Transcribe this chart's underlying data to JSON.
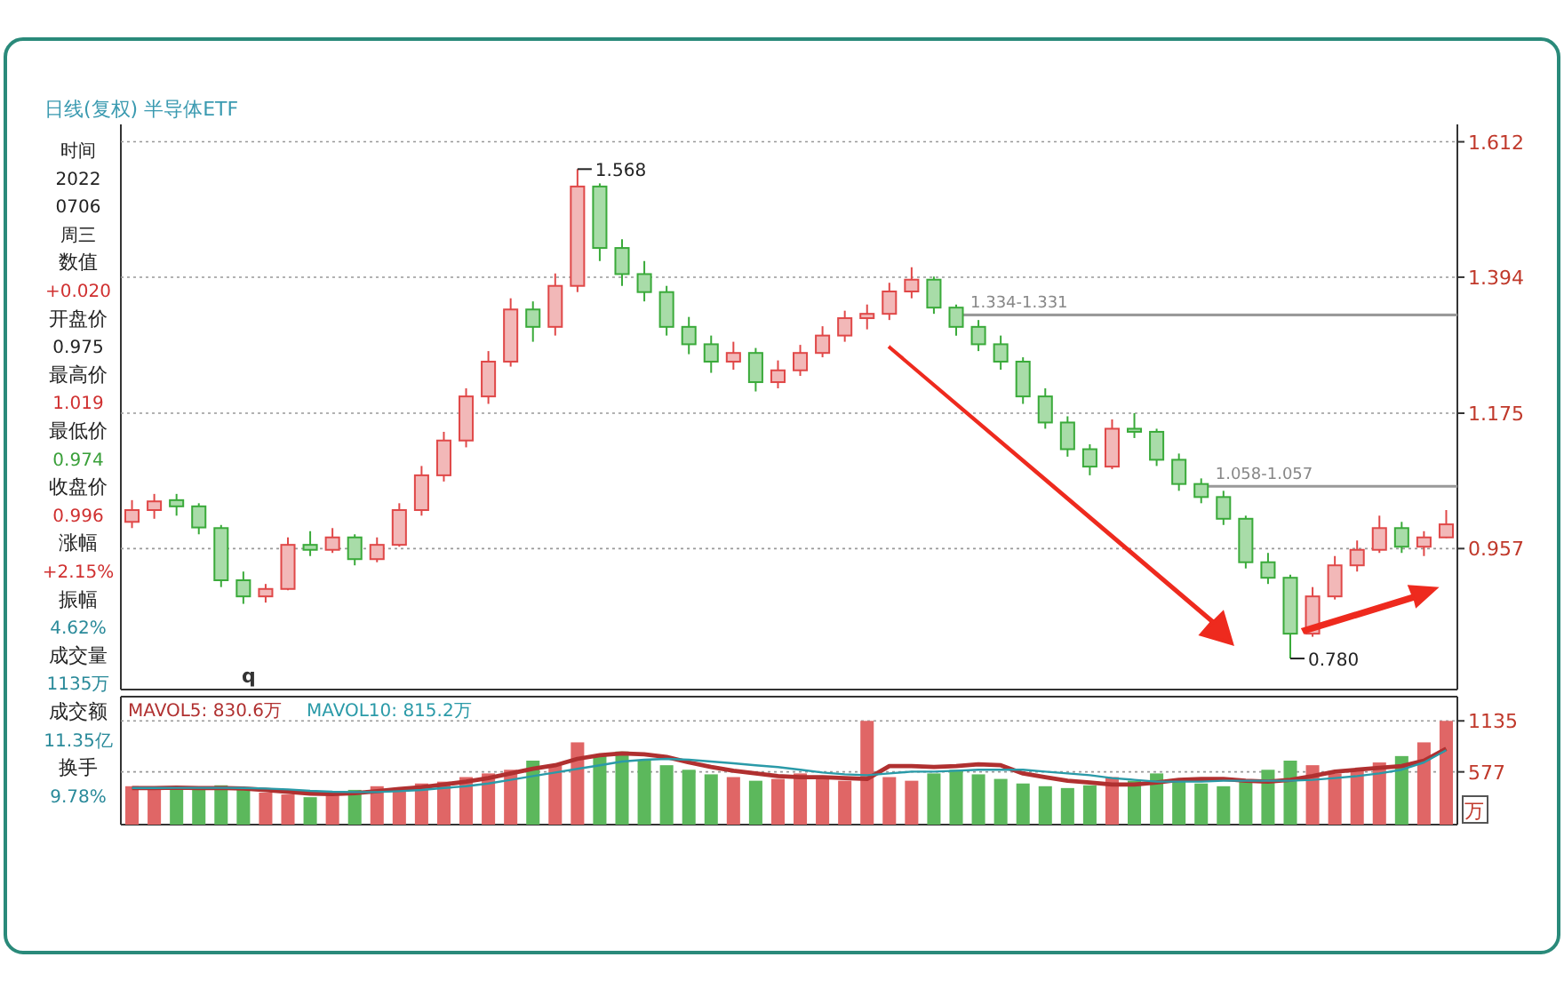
{
  "chart_data": [
    {
      "type": "candlestick",
      "title": "日线(复权) 半导体ETF",
      "categories": [
        null,
        null,
        null,
        null,
        null,
        null,
        null,
        null,
        null,
        null,
        null,
        null,
        null,
        null,
        null,
        null,
        null,
        null,
        null,
        null,
        null,
        null,
        null,
        null,
        null,
        null,
        null,
        null,
        null,
        null,
        null,
        null,
        null,
        null,
        null,
        null,
        null,
        null,
        null,
        null,
        null,
        null,
        null,
        null,
        null,
        null,
        null,
        null,
        null,
        null,
        null,
        null,
        null,
        null,
        null,
        null,
        null,
        null,
        null,
        null
      ],
      "ohlc": [
        [
          1.0,
          1.035,
          0.99,
          1.019
        ],
        [
          1.019,
          1.045,
          1.005,
          1.033
        ],
        [
          1.035,
          1.045,
          1.01,
          1.025
        ],
        [
          1.025,
          1.03,
          0.98,
          0.991
        ],
        [
          0.99,
          0.995,
          0.895,
          0.906
        ],
        [
          0.906,
          0.92,
          0.868,
          0.88
        ],
        [
          0.88,
          0.9,
          0.87,
          0.892
        ],
        [
          0.892,
          0.975,
          0.89,
          0.963
        ],
        [
          0.963,
          0.985,
          0.945,
          0.955
        ],
        [
          0.955,
          0.99,
          0.95,
          0.975
        ],
        [
          0.975,
          0.98,
          0.93,
          0.94
        ],
        [
          0.94,
          0.975,
          0.935,
          0.963
        ],
        [
          0.963,
          1.03,
          0.96,
          1.019
        ],
        [
          1.019,
          1.09,
          1.01,
          1.075
        ],
        [
          1.075,
          1.145,
          1.065,
          1.131
        ],
        [
          1.131,
          1.215,
          1.12,
          1.202
        ],
        [
          1.202,
          1.275,
          1.19,
          1.258
        ],
        [
          1.258,
          1.36,
          1.25,
          1.342
        ],
        [
          1.342,
          1.355,
          1.29,
          1.314
        ],
        [
          1.314,
          1.4,
          1.3,
          1.38
        ],
        [
          1.38,
          1.568,
          1.37,
          1.54
        ],
        [
          1.54,
          1.545,
          1.42,
          1.441
        ],
        [
          1.441,
          1.455,
          1.38,
          1.399
        ],
        [
          1.399,
          1.42,
          1.355,
          1.37
        ],
        [
          1.37,
          1.38,
          1.3,
          1.314
        ],
        [
          1.314,
          1.33,
          1.27,
          1.286
        ],
        [
          1.286,
          1.3,
          1.24,
          1.258
        ],
        [
          1.258,
          1.29,
          1.245,
          1.272
        ],
        [
          1.272,
          1.28,
          1.21,
          1.225
        ],
        [
          1.225,
          1.26,
          1.215,
          1.244
        ],
        [
          1.244,
          1.285,
          1.235,
          1.272
        ],
        [
          1.272,
          1.315,
          1.265,
          1.3
        ],
        [
          1.3,
          1.34,
          1.29,
          1.328
        ],
        [
          1.328,
          1.35,
          1.31,
          1.335
        ],
        [
          1.335,
          1.385,
          1.325,
          1.371
        ],
        [
          1.371,
          1.41,
          1.36,
          1.39
        ],
        [
          1.39,
          1.395,
          1.335,
          1.345
        ],
        [
          1.345,
          1.35,
          1.3,
          1.314
        ],
        [
          1.314,
          1.325,
          1.275,
          1.286
        ],
        [
          1.286,
          1.3,
          1.245,
          1.258
        ],
        [
          1.258,
          1.265,
          1.19,
          1.202
        ],
        [
          1.202,
          1.215,
          1.15,
          1.16
        ],
        [
          1.16,
          1.17,
          1.105,
          1.117
        ],
        [
          1.117,
          1.125,
          1.075,
          1.089
        ],
        [
          1.089,
          1.165,
          1.085,
          1.15
        ],
        [
          1.15,
          1.175,
          1.135,
          1.145
        ],
        [
          1.145,
          1.15,
          1.09,
          1.1
        ],
        [
          1.1,
          1.11,
          1.05,
          1.061
        ],
        [
          1.061,
          1.07,
          1.03,
          1.04
        ],
        [
          1.04,
          1.05,
          0.995,
          1.005
        ],
        [
          1.005,
          1.01,
          0.925,
          0.935
        ],
        [
          0.935,
          0.95,
          0.9,
          0.91
        ],
        [
          0.91,
          0.915,
          0.78,
          0.82
        ],
        [
          0.82,
          0.895,
          0.815,
          0.88
        ],
        [
          0.88,
          0.945,
          0.875,
          0.93
        ],
        [
          0.93,
          0.97,
          0.92,
          0.955
        ],
        [
          0.955,
          1.01,
          0.95,
          0.99
        ],
        [
          0.99,
          1.0,
          0.95,
          0.96
        ],
        [
          0.96,
          0.985,
          0.945,
          0.975
        ],
        [
          0.975,
          1.019,
          0.974,
          0.996
        ]
      ],
      "ylim": [
        0.73,
        1.64
      ],
      "yticks": [
        0.957,
        1.175,
        1.394,
        1.612
      ],
      "grid": "y",
      "bands": [
        {
          "axis": "y",
          "from": 1.331,
          "to": 1.334,
          "label": "1.334-1.331"
        },
        {
          "axis": "y",
          "from": 1.057,
          "to": 1.058,
          "label": "1.058-1.057"
        }
      ],
      "annotations": [
        "1.568",
        "0.780",
        "q"
      ]
    },
    {
      "type": "bar",
      "categories": [
        null,
        null,
        null,
        null,
        null,
        null,
        null,
        null,
        null,
        null,
        null,
        null,
        null,
        null,
        null,
        null,
        null,
        null,
        null,
        null,
        null,
        null,
        null,
        null,
        null,
        null,
        null,
        null,
        null,
        null,
        null,
        null,
        null,
        null,
        null,
        null,
        null,
        null,
        null,
        null,
        null,
        null,
        null,
        null,
        null,
        null,
        null,
        null,
        null,
        null,
        null,
        null,
        null,
        null,
        null,
        null,
        null,
        null,
        null,
        null
      ],
      "ylabel": "万",
      "ylim": [
        0,
        1400
      ],
      "yticks": [
        577,
        1135
      ],
      "grid": "y",
      "legend": "top left",
      "series": [
        {
          "type": "bar",
          "colors": [
            "#e06666",
            "#e06666",
            "#5cb85c",
            "#5cb85c",
            "#5cb85c",
            "#5cb85c",
            "#e06666",
            "#e06666",
            "#5cb85c",
            "#e06666",
            "#5cb85c",
            "#e06666",
            "#e06666",
            "#e06666",
            "#e06666",
            "#e06666",
            "#e06666",
            "#e06666",
            "#5cb85c",
            "#e06666",
            "#e06666",
            "#5cb85c",
            "#5cb85c",
            "#5cb85c",
            "#5cb85c",
            "#5cb85c",
            "#5cb85c",
            "#e06666",
            "#5cb85c",
            "#e06666",
            "#e06666",
            "#e06666",
            "#e06666",
            "#e06666",
            "#e06666",
            "#e06666",
            "#5cb85c",
            "#5cb85c",
            "#5cb85c",
            "#5cb85c",
            "#5cb85c",
            "#5cb85c",
            "#5cb85c",
            "#5cb85c",
            "#e06666",
            "#5cb85c",
            "#5cb85c",
            "#5cb85c",
            "#5cb85c",
            "#5cb85c",
            "#5cb85c",
            "#5cb85c",
            "#5cb85c",
            "#e06666",
            "#e06666",
            "#e06666",
            "#e06666",
            "#5cb85c",
            "#e06666",
            "#e06666"
          ],
          "values": [
            420,
            400,
            390,
            380,
            430,
            400,
            350,
            330,
            300,
            320,
            380,
            420,
            400,
            450,
            470,
            520,
            560,
            600,
            700,
            650,
            900,
            750,
            800,
            700,
            650,
            600,
            550,
            520,
            480,
            500,
            560,
            520,
            480,
            1135,
            520,
            480,
            560,
            600,
            550,
            500,
            450,
            420,
            400,
            430,
            520,
            480,
            560,
            500,
            450,
            420,
            480,
            600,
            700,
            650,
            560,
            600,
            680,
            750,
            900,
            1135
          ]
        },
        {
          "type": "line",
          "name": "MAVOL5: 830.6万",
          "color": "#b03030",
          "values": [
            400,
            400,
            405,
            400,
            400,
            395,
            380,
            360,
            340,
            335,
            345,
            365,
            390,
            410,
            440,
            470,
            510,
            560,
            610,
            650,
            720,
            760,
            780,
            770,
            740,
            680,
            630,
            590,
            560,
            530,
            520,
            520,
            510,
            500,
            640,
            640,
            630,
            640,
            660,
            650,
            560,
            520,
            480,
            460,
            440,
            440,
            460,
            490,
            500,
            500,
            480,
            470,
            490,
            530,
            580,
            600,
            620,
            640,
            700,
            830.6
          ]
        },
        {
          "type": "line",
          "name": "MAVOL10: 815.2万",
          "color": "#2a9aa8",
          "values": [
            400,
            400,
            402,
            402,
            402,
            400,
            395,
            385,
            370,
            360,
            355,
            355,
            365,
            380,
            400,
            420,
            450,
            490,
            530,
            570,
            610,
            650,
            690,
            710,
            720,
            710,
            690,
            670,
            650,
            630,
            600,
            570,
            550,
            540,
            560,
            580,
            580,
            590,
            600,
            600,
            600,
            580,
            560,
            540,
            510,
            490,
            470,
            470,
            470,
            480,
            480,
            480,
            480,
            490,
            510,
            530,
            560,
            600,
            680,
            815.2
          ]
        }
      ]
    },
    {
      "type": "other",
      "annotations": [
        "时间",
        "2022",
        "0706",
        "周三",
        "数值",
        "+0.020",
        "开盘价",
        "0.975",
        "最高价",
        "1.019",
        "最低价",
        "0.974",
        "收盘价",
        "0.996",
        "涨幅",
        "+2.15%",
        "振幅",
        "4.62%",
        "成交量",
        "1135万",
        "成交额",
        "11.35亿",
        "换手",
        "9.78%"
      ]
    }
  ]
}
